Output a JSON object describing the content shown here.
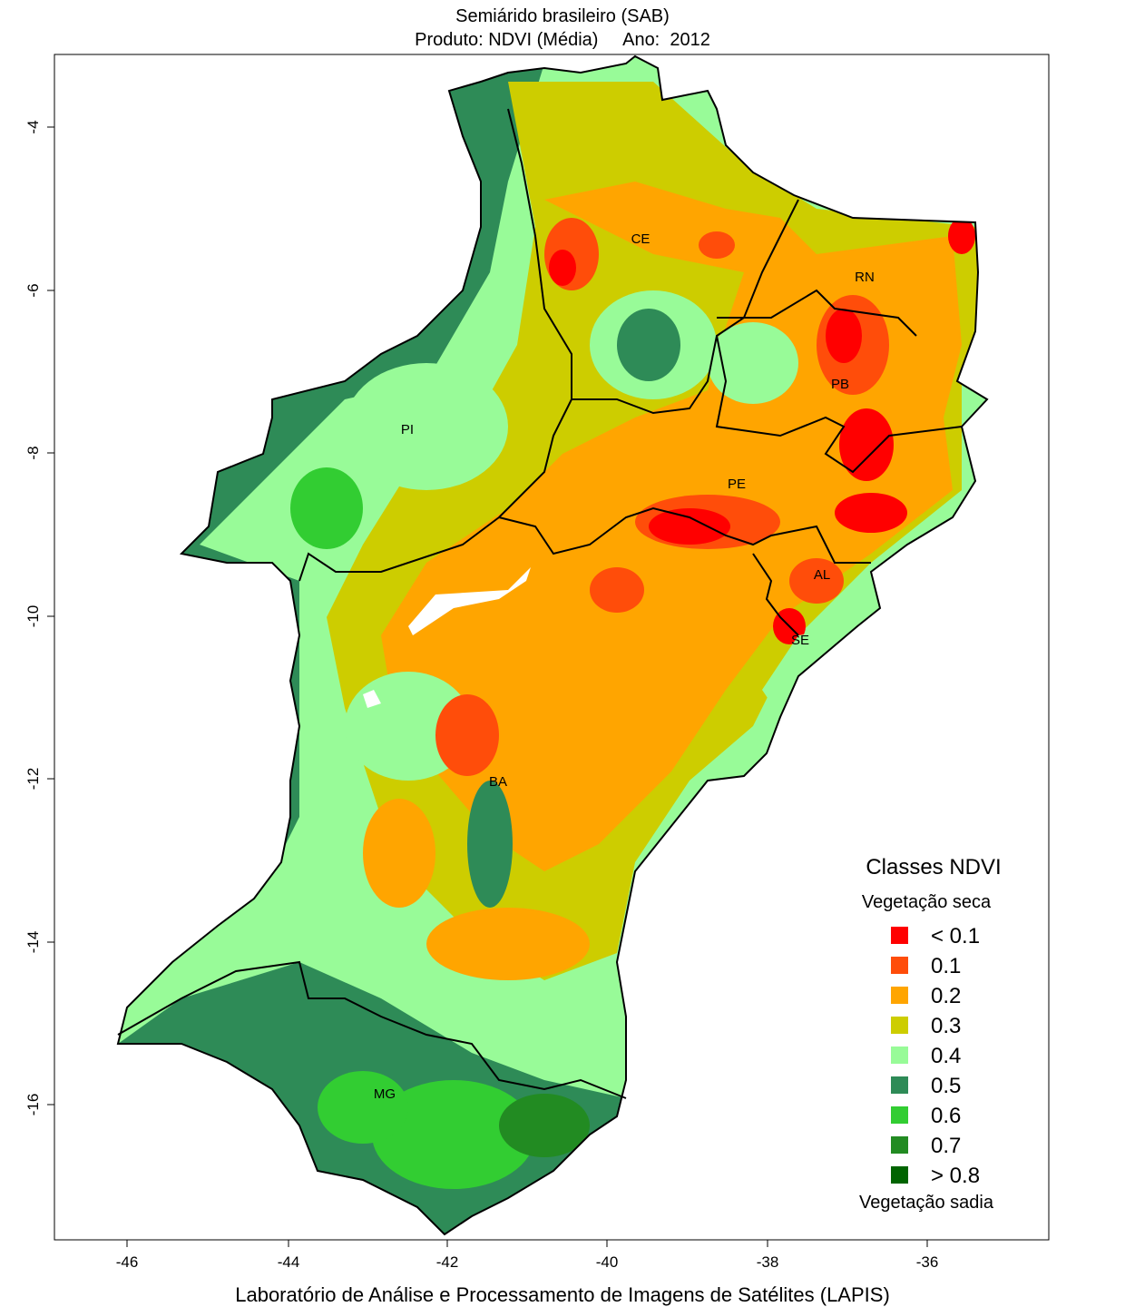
{
  "title": {
    "line1": "Semiárido brasileiro (SAB)",
    "line2": "Produto: NDVI (Média)     Ano:  2012"
  },
  "footer": "Laboratório de Análise e Processamento de Imagens de Satélites (LAPIS)",
  "axes": {
    "x_ticks": [
      "-46",
      "-44",
      "-42",
      "-40",
      "-38",
      "-36"
    ],
    "y_ticks": [
      "-4",
      "-6",
      "-8",
      "-10",
      "-12",
      "-14",
      "-16"
    ]
  },
  "states": [
    "CE",
    "RN",
    "PB",
    "PI",
    "PE",
    "AL",
    "SE",
    "BA",
    "MG"
  ],
  "legend": {
    "title": "Classes NDVI",
    "top_label": "Vegetação seca",
    "bottom_label": "Vegetação sadia",
    "items": [
      {
        "label": "< 0.1",
        "color": "#ff0000"
      },
      {
        "label": "0.1",
        "color": "#ff4d0a"
      },
      {
        "label": "0.2",
        "color": "#ffa500"
      },
      {
        "label": "0.3",
        "color": "#cdcd00"
      },
      {
        "label": "0.4",
        "color": "#98fb98"
      },
      {
        "label": "0.5",
        "color": "#2e8b57"
      },
      {
        "label": "0.6",
        "color": "#32cd32"
      },
      {
        "label": "0.7",
        "color": "#228b22"
      },
      {
        "label": "> 0.8",
        "color": "#006400"
      }
    ]
  }
}
